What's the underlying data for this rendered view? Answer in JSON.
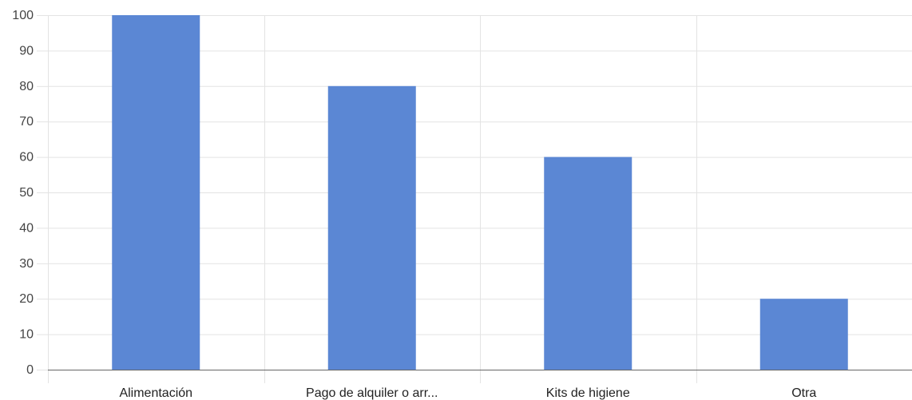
{
  "chart_data": {
    "type": "bar",
    "categories": [
      "Alimentación",
      "Pago de alquiler o arr...",
      "Kits de higiene",
      "Otra"
    ],
    "values": [
      100,
      80,
      60,
      20
    ],
    "yticks": [
      0,
      10,
      20,
      30,
      40,
      50,
      60,
      70,
      80,
      90,
      100
    ],
    "ylim": [
      0,
      100
    ],
    "grid": true,
    "bar_color": "#5b87d4"
  }
}
